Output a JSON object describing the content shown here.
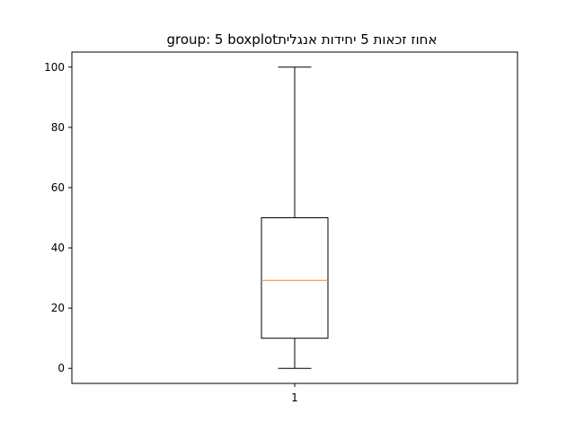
{
  "chart_data": {
    "type": "box",
    "title": "אחוז זכאות 5 יחידות אנגליתgroup: 5 boxplot",
    "categories": [
      "1"
    ],
    "series": [
      {
        "whisker_low": 0,
        "q1": 10,
        "median": 29.2,
        "q3": 50,
        "whisker_high": 100
      }
    ],
    "ylim": [
      -5,
      105
    ],
    "yticks": [
      0,
      20,
      40,
      60,
      80,
      100
    ],
    "xlabel": "",
    "ylabel": "",
    "grid": false,
    "colors": {
      "box": "#000000",
      "median": "#ff7f0e",
      "frame": "#000000"
    }
  }
}
